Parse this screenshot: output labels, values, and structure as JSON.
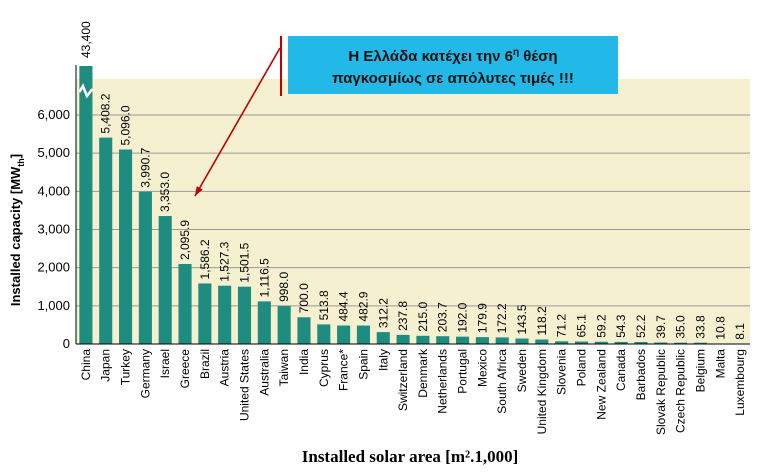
{
  "chart_data": {
    "type": "bar",
    "categories": [
      "China",
      "Japan",
      "Turkey",
      "Germany",
      "Israel",
      "Greece",
      "Brazil",
      "Austria",
      "United States",
      "Australia",
      "Taiwan",
      "India",
      "Cyprus",
      "France*",
      "Spain",
      "Italy",
      "Switzerland",
      "Denmark",
      "Netherlands",
      "Portugal",
      "Mexico",
      "South Africa",
      "Sweden",
      "United Kingdom",
      "Slovenia",
      "Poland",
      "New Zealand",
      "Canada",
      "Barbados",
      "Slovak Republic",
      "Czech Republic",
      "Belgium",
      "Malta",
      "Luxembourg"
    ],
    "values": [
      43400,
      5408.2,
      5096.0,
      3990.7,
      3353.0,
      2095.9,
      1586.2,
      1527.3,
      1501.5,
      1116.5,
      998.0,
      700.0,
      513.8,
      484.4,
      482.9,
      312.2,
      237.8,
      215.0,
      203.7,
      192.0,
      179.9,
      172.2,
      143.5,
      118.2,
      71.2,
      65.1,
      59.2,
      54.3,
      52.2,
      39.7,
      35.0,
      33.8,
      10.8,
      8.1
    ],
    "value_labels": [
      "43,400",
      "5,408.2",
      "5,096.0",
      "3,990.7",
      "3,353.0",
      "2,095.9",
      "1,586.2",
      "1,527.3",
      "1,501.5",
      "1,116.5",
      "998.0",
      "700.0",
      "513.8",
      "484.4",
      "482.9",
      "312.2",
      "237.8",
      "215.0",
      "203.7",
      "192.0",
      "179.9",
      "172.2",
      "143.5",
      "118.2",
      "71.2",
      "65.1",
      "59.2",
      "54.3",
      "52.2",
      "39.7",
      "35.0",
      "33.8",
      "10.8",
      "8.1"
    ],
    "ylim": [
      0,
      6000
    ],
    "yticks": [
      0,
      1000,
      2000,
      3000,
      4000,
      5000,
      6000
    ],
    "ytick_labels": [
      "0",
      "1,000",
      "2,000",
      "3,000",
      "4,000",
      "5,000",
      "6,000"
    ],
    "ylabel": "Installed capacity [MW",
    "ylabel_sub": "th",
    "ylabel_end": "]",
    "xlabel": "Installed solar area [m².1,000]",
    "grid": true,
    "colors": {
      "bar": "#1e8c7e",
      "plot_bg": "#f5f0cf",
      "grid": "#999999",
      "arrow": "#c00000",
      "callout_bg": "#22b8e8"
    }
  },
  "callout": {
    "line1": "Η Ελλάδα κατέχει την 6η θέση",
    "line2": "παγκοσμίως σε απόλυτες τιμές !!!"
  }
}
